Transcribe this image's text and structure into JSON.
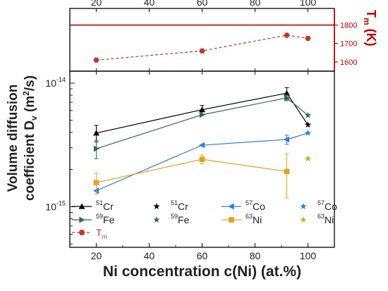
{
  "colors": {
    "cr": "#000000",
    "fe": "#2e6b58",
    "co": "#2f7ed8",
    "ni": "#e0a41e",
    "tm": "#c0392b",
    "axis": "#222222",
    "red_axis": "#c00000"
  },
  "chart_data": [
    {
      "type": "line",
      "panel": "top",
      "title": "",
      "xlabel": "",
      "ylabel": "T",
      "ylabel_sub": "m",
      "ylabel_unit": "(K)",
      "xlim": [
        10,
        110
      ],
      "ylim": [
        1550,
        1890
      ],
      "xticks": [
        20,
        40,
        60,
        80,
        100
      ],
      "yticks": [
        1600,
        1700,
        1800
      ],
      "reference_line": 1800,
      "series": [
        {
          "name": "T",
          "name_sub": "m",
          "color_key": "tm",
          "marker": "hexagon",
          "dashed": true,
          "x": [
            20,
            60,
            92,
            100
          ],
          "y": [
            1610,
            1660,
            1745,
            1728
          ]
        }
      ]
    },
    {
      "type": "line",
      "panel": "bottom",
      "title": "",
      "xlabel": "Ni concentration c(Ni) (at.%)",
      "ylabel_line1": "Volume diffusion",
      "ylabel_line2": "coefficient D",
      "ylabel_sub": "v",
      "ylabel_unit_pre": " (m",
      "ylabel_sup": "2",
      "ylabel_unit_post": "/s)",
      "yscale": "log",
      "xlim": [
        10,
        110
      ],
      "ylim": [
        4.7e-16,
        1.25e-14
      ],
      "xticks": [
        20,
        40,
        60,
        80,
        100
      ],
      "ytick_labels": [
        {
          "value": 1e-15,
          "base": "10",
          "exp": "-15"
        },
        {
          "value": 1e-14,
          "base": "10",
          "exp": "-14"
        }
      ],
      "legend_placement": "bottom-left",
      "series": [
        {
          "name_sup": "51",
          "name": "Cr",
          "color_key": "cr",
          "marker": "triangle",
          "x": [
            20,
            60,
            92
          ],
          "y": [
            3.95e-15,
            6.1e-15,
            8.3e-15
          ],
          "err": [
            6e-16,
            5e-16,
            9e-16
          ]
        },
        {
          "name_sup": "51",
          "name": "Cr",
          "color_key": "cr",
          "marker": "star",
          "single": true,
          "x": [
            100
          ],
          "y": [
            4.6e-15
          ],
          "err": [
            0
          ]
        },
        {
          "name_sup": "57",
          "name": "Co",
          "color_key": "co",
          "marker": "tri-left",
          "x": [
            20,
            60,
            92
          ],
          "y": [
            1.35e-15,
            3.15e-15,
            3.5e-15
          ],
          "err": [
            0,
            0,
            3e-16
          ]
        },
        {
          "name_sup": "57",
          "name": "Co",
          "color_key": "co",
          "marker": "star",
          "single": true,
          "x": [
            100
          ],
          "y": [
            3.95e-15
          ],
          "err": [
            0
          ]
        },
        {
          "name_sup": "59",
          "name": "Fe",
          "color_key": "fe",
          "marker": "tri-right",
          "x": [
            20,
            60,
            92
          ],
          "y": [
            2.95e-15,
            5.55e-15,
            7.6e-15
          ],
          "err": [
            5e-16,
            0,
            4e-16
          ]
        },
        {
          "name_sup": "59",
          "name": "Fe",
          "color_key": "fe",
          "marker": "star",
          "single": true,
          "x": [
            100
          ],
          "y": [
            5.5e-15
          ],
          "err": [
            0
          ]
        },
        {
          "name_sup": "63",
          "name": "Ni",
          "color_key": "ni",
          "marker": "square",
          "x": [
            20,
            60,
            92
          ],
          "y": [
            1.57e-15,
            2.42e-15,
            1.93e-15
          ],
          "err": [
            3e-16,
            2e-16,
            7.5e-16
          ]
        },
        {
          "name_sup": "63",
          "name": "Ni",
          "color_key": "ni",
          "marker": "star",
          "single": true,
          "x": [
            100
          ],
          "y": [
            2.45e-15
          ],
          "err": [
            0
          ]
        },
        {
          "name": "T",
          "name_sub": "m",
          "color_key": "tm",
          "marker": "hexagon",
          "legend_only": true,
          "x": [],
          "y": []
        }
      ],
      "connectors": [
        {
          "from_series": 0,
          "to_series": 1,
          "color_key": "cr"
        },
        {
          "from_series": 2,
          "to_series": 3,
          "color_key": "co"
        },
        {
          "from_series": 4,
          "to_series": 5,
          "color_key": "fe"
        }
      ]
    }
  ]
}
